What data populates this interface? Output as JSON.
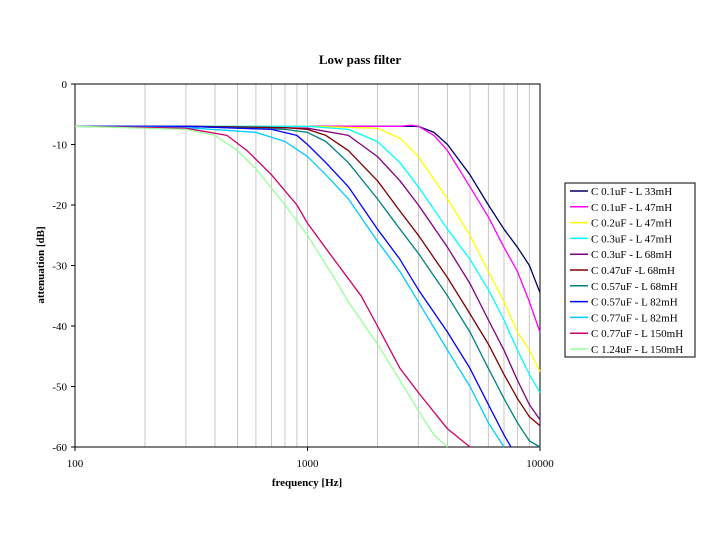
{
  "chart_data": {
    "type": "line",
    "title": "Low pass filter",
    "xlabel": "frequency [Hz]",
    "ylabel": "attenuation [dB]",
    "xscale": "log",
    "xlim": [
      100,
      10000
    ],
    "ylim": [
      -60,
      0
    ],
    "x_ticks": [
      "100",
      "1000",
      "10000"
    ],
    "y_ticks": [
      "0",
      "-10",
      "-20",
      "-30",
      "-40",
      "-50",
      "-60"
    ],
    "grid": "vertical log gridlines",
    "legend_position": "right",
    "series": [
      {
        "name": "C 0.1uF - L 33mH",
        "color": "#000066",
        "x": [
          100,
          300,
          1000,
          2000,
          3000,
          3500,
          4000,
          5000,
          6000,
          7000,
          8000,
          9000,
          10000
        ],
        "y": [
          -7,
          -7,
          -7,
          -7,
          -7,
          -8,
          -10,
          -15,
          -20,
          -24,
          -27,
          -30,
          -34.5
        ]
      },
      {
        "name": "C 0.1uF - L 47mH",
        "color": "#ff00ff",
        "x": [
          100,
          300,
          1000,
          2000,
          2500,
          2800,
          3000,
          3500,
          4000,
          5000,
          6000,
          7000,
          8000,
          9000,
          10000
        ],
        "y": [
          -7,
          -7,
          -7,
          -7,
          -7,
          -6.8,
          -7,
          -8.5,
          -11,
          -17,
          -22,
          -27,
          -31,
          -36,
          -41
        ]
      },
      {
        "name": "C 0.2uF - L 47mH",
        "color": "#ffff00",
        "x": [
          100,
          300,
          1000,
          2000,
          2500,
          3000,
          4000,
          5000,
          6000,
          7000,
          8000,
          9000,
          10000
        ],
        "y": [
          -7,
          -7,
          -7,
          -7.3,
          -9,
          -12,
          -19,
          -25,
          -31,
          -36,
          -41,
          -44,
          -47.5
        ]
      },
      {
        "name": "C 0.3uF - L 47mH",
        "color": "#00ffff",
        "x": [
          100,
          300,
          1000,
          1500,
          2000,
          2500,
          3000,
          4000,
          5000,
          6000,
          7000,
          8000,
          9000,
          10000
        ],
        "y": [
          -7,
          -7,
          -7,
          -7.5,
          -9.5,
          -13,
          -17,
          -24,
          -29,
          -34,
          -39,
          -44,
          -48,
          -51
        ]
      },
      {
        "name": "C 0.3uF - L 68mH",
        "color": "#800080",
        "x": [
          100,
          300,
          1000,
          1500,
          2000,
          2500,
          3000,
          4000,
          5000,
          6000,
          7000,
          8000,
          9000,
          10000
        ],
        "y": [
          -7,
          -7,
          -7.3,
          -8.5,
          -12,
          -16,
          -20,
          -27,
          -33,
          -39,
          -44,
          -49,
          -53,
          -55.5
        ]
      },
      {
        "name": "C 0.47uF -L 68mH",
        "color": "#800000",
        "x": [
          100,
          300,
          800,
          1000,
          1200,
          1500,
          2000,
          2500,
          3000,
          4000,
          5000,
          6000,
          7000,
          8000,
          9000,
          10000
        ],
        "y": [
          -7,
          -7,
          -7.2,
          -7.5,
          -8.5,
          -11,
          -16,
          -21,
          -25,
          -32,
          -38,
          -43,
          -48,
          -52,
          -55,
          -56.5
        ]
      },
      {
        "name": "C 0.57uF - L 68mH",
        "color": "#008080",
        "x": [
          100,
          300,
          800,
          1000,
          1200,
          1500,
          2000,
          2500,
          3000,
          4000,
          5000,
          6000,
          7000,
          8000,
          9000,
          10000
        ],
        "y": [
          -7,
          -7,
          -7.5,
          -8,
          -9.5,
          -13,
          -19,
          -24,
          -28,
          -35,
          -41,
          -47,
          -52,
          -56,
          -59,
          -60
        ]
      },
      {
        "name": "C 0.57uF - L 82mH",
        "color": "#0000ff",
        "x": [
          100,
          300,
          700,
          900,
          1000,
          1200,
          1500,
          2000,
          2500,
          3000,
          4000,
          5000,
          6000,
          7000,
          7500
        ],
        "y": [
          -7,
          -7,
          -7.5,
          -8.5,
          -10,
          -13,
          -17,
          -24,
          -29,
          -34,
          -41,
          -47,
          -53,
          -58,
          -60
        ]
      },
      {
        "name": "C 0.77uF - L 82mH",
        "color": "#00ccff",
        "x": [
          100,
          300,
          600,
          800,
          1000,
          1200,
          1500,
          2000,
          2500,
          3000,
          4000,
          5000,
          6000,
          7000
        ],
        "y": [
          -7,
          -7.2,
          -8,
          -9.5,
          -12,
          -15,
          -19,
          -26,
          -31,
          -36,
          -44,
          -50,
          -56,
          -60
        ]
      },
      {
        "name": "C 0.77uF - L 150mH",
        "color": "#cc0066",
        "x": [
          100,
          300,
          450,
          550,
          700,
          900,
          1000,
          1300,
          1700,
          2000,
          2500,
          3000,
          4000,
          5000
        ],
        "y": [
          -7,
          -7.3,
          -8.5,
          -11,
          -15,
          -20,
          -23,
          -29,
          -35,
          -40,
          -47,
          -51,
          -57,
          -60
        ]
      },
      {
        "name": "C 1.24uF - L 150mH",
        "color": "#99ff99",
        "x": [
          100,
          300,
          400,
          500,
          600,
          800,
          1000,
          1300,
          1500,
          2000,
          2500,
          3000,
          3500,
          4000
        ],
        "y": [
          -7,
          -7.5,
          -8.5,
          -11,
          -14,
          -20,
          -25,
          -32,
          -36,
          -43,
          -49,
          -54,
          -58,
          -60
        ]
      }
    ]
  }
}
